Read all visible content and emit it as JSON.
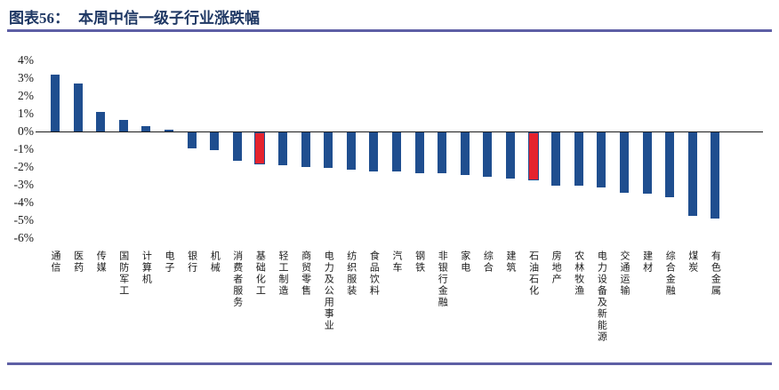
{
  "header": {
    "figure_label": "图表56：",
    "title": "本周中信一级子行业涨跌幅"
  },
  "chart_data": {
    "type": "bar",
    "title": "本周中信一级子行业涨跌幅",
    "xlabel": "",
    "ylabel": "",
    "ylim": [
      -6,
      4
    ],
    "grid": false,
    "legend": "none",
    "ytick_labels": [
      "4%",
      "3%",
      "2%",
      "1%",
      "0%",
      "-1%",
      "-2%",
      "-3%",
      "-4%",
      "-5%",
      "-6%"
    ],
    "categories": [
      "通信",
      "医药",
      "传媒",
      "国防军工",
      "计算机",
      "电子",
      "银行",
      "机械",
      "消费者服务",
      "基础化工",
      "轻工制造",
      "商贸零售",
      "电力及公用事业",
      "纺织服装",
      "食品饮料",
      "汽车",
      "钢铁",
      "非银行金融",
      "家电",
      "综合",
      "建筑",
      "石油石化",
      "房地产",
      "农林牧渔",
      "电力设备及新能源",
      "交通运输",
      "建材",
      "综合金融",
      "煤炭",
      "有色金属"
    ],
    "values": [
      3.2,
      2.7,
      1.1,
      0.65,
      0.3,
      0.1,
      -0.9,
      -1.0,
      -1.6,
      -1.8,
      -1.85,
      -1.95,
      -2.0,
      -2.1,
      -2.2,
      -2.2,
      -2.3,
      -2.3,
      -2.4,
      -2.5,
      -2.6,
      -2.7,
      -3.0,
      -3.0,
      -3.1,
      -3.4,
      -3.45,
      -3.65,
      -4.7,
      -4.85
    ],
    "highlight_indices": [
      9,
      21
    ],
    "colors": {
      "bar_default": "#1F4E8F",
      "bar_highlight": "#E5232E",
      "highlight_border": "#1F4E8F",
      "axis_line": "#1a1a1a",
      "title_text": "#1F3864",
      "divider": "#5E5FA5"
    }
  }
}
